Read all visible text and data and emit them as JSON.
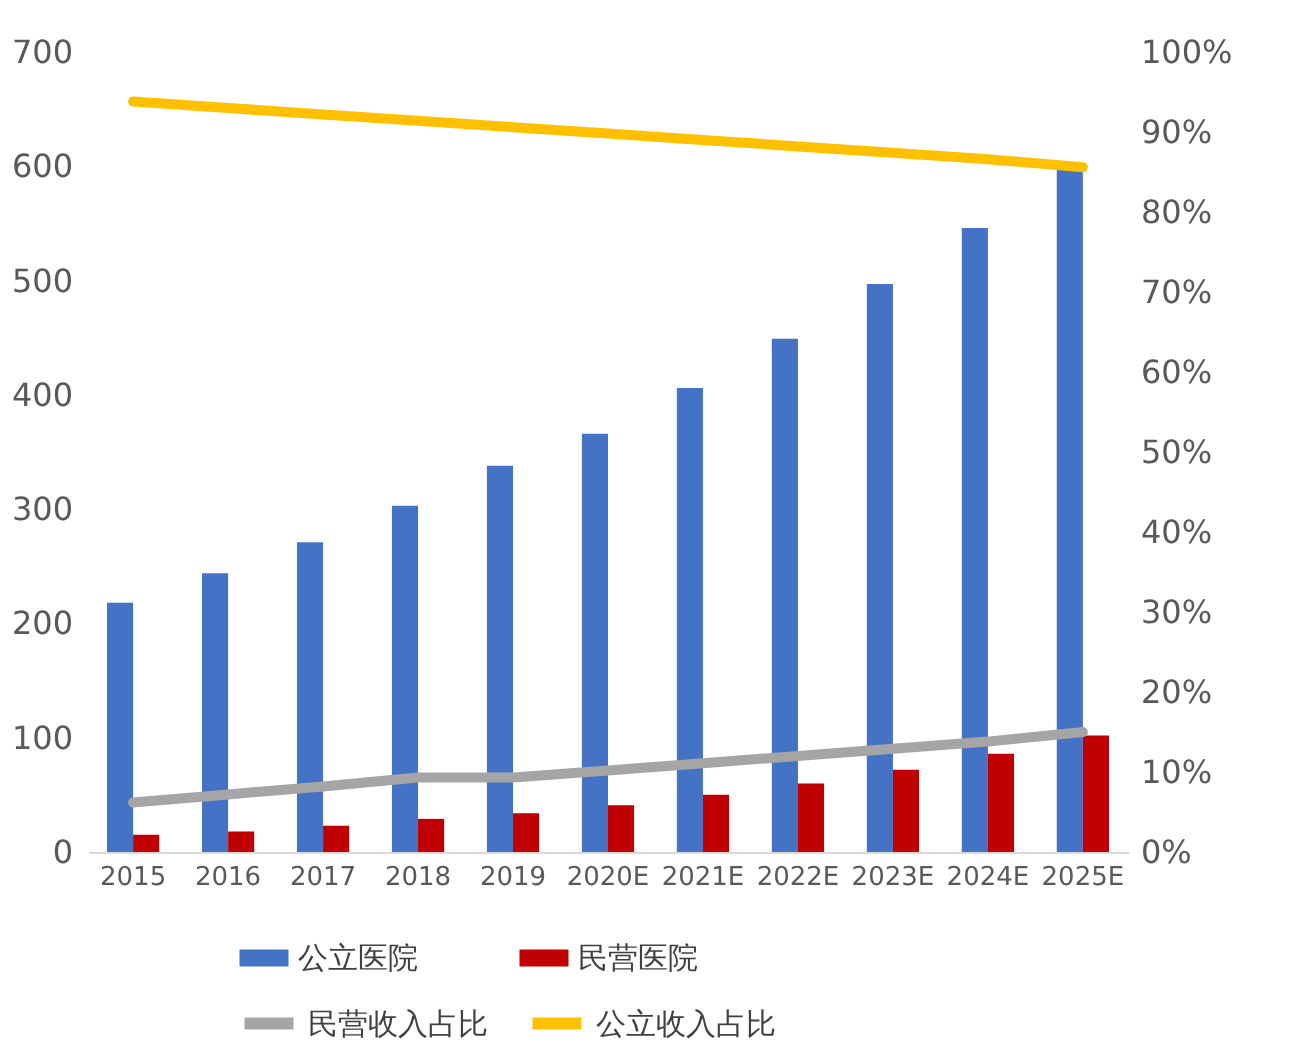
{
  "chart_data": {
    "type": "bar",
    "categories": [
      "2015",
      "2016",
      "2017",
      "2018",
      "2019",
      "2020E",
      "2021E",
      "2022E",
      "2023E",
      "2024E",
      "2025E"
    ],
    "series": [
      {
        "name": "公立医院",
        "color": "#4472c4",
        "values": [
          218,
          244,
          271,
          303,
          338,
          366,
          406,
          449,
          497,
          546,
          597
        ]
      },
      {
        "name": "民营医院",
        "color": "#c00000",
        "values": [
          15,
          18,
          23,
          29,
          34,
          41,
          50,
          60,
          72,
          86,
          102
        ]
      },
      {
        "name": "民营收入占比",
        "type": "line",
        "axis": "y2",
        "color": "#a5a5a5",
        "values": [
          6.2,
          7.2,
          8.2,
          9.3,
          9.3,
          10.2,
          11.1,
          12.0,
          12.9,
          13.8,
          15.0
        ]
      },
      {
        "name": "公立收入占比",
        "type": "line",
        "axis": "y2",
        "color": "#ffc000",
        "values": [
          93.8,
          93.0,
          92.2,
          91.4,
          90.6,
          89.8,
          89.0,
          88.2,
          87.4,
          86.6,
          85.6
        ]
      }
    ],
    "ylim": [
      0,
      700
    ],
    "yticks": [
      0,
      100,
      200,
      300,
      400,
      500,
      600,
      700
    ],
    "y2lim": [
      0,
      100
    ],
    "y2ticks": [
      {
        "value": 0,
        "label": "0%"
      },
      {
        "value": 10,
        "label": "10%"
      },
      {
        "value": 20,
        "label": "20%"
      },
      {
        "value": 30,
        "label": "30%"
      },
      {
        "value": 40,
        "label": "40%"
      },
      {
        "value": 50,
        "label": "50%"
      },
      {
        "value": 60,
        "label": "60%"
      },
      {
        "value": 70,
        "label": "70%"
      },
      {
        "value": 80,
        "label": "80%"
      },
      {
        "value": 90,
        "label": "90%"
      },
      {
        "value": 100,
        "label": "100%"
      }
    ],
    "legend": "bottom"
  }
}
